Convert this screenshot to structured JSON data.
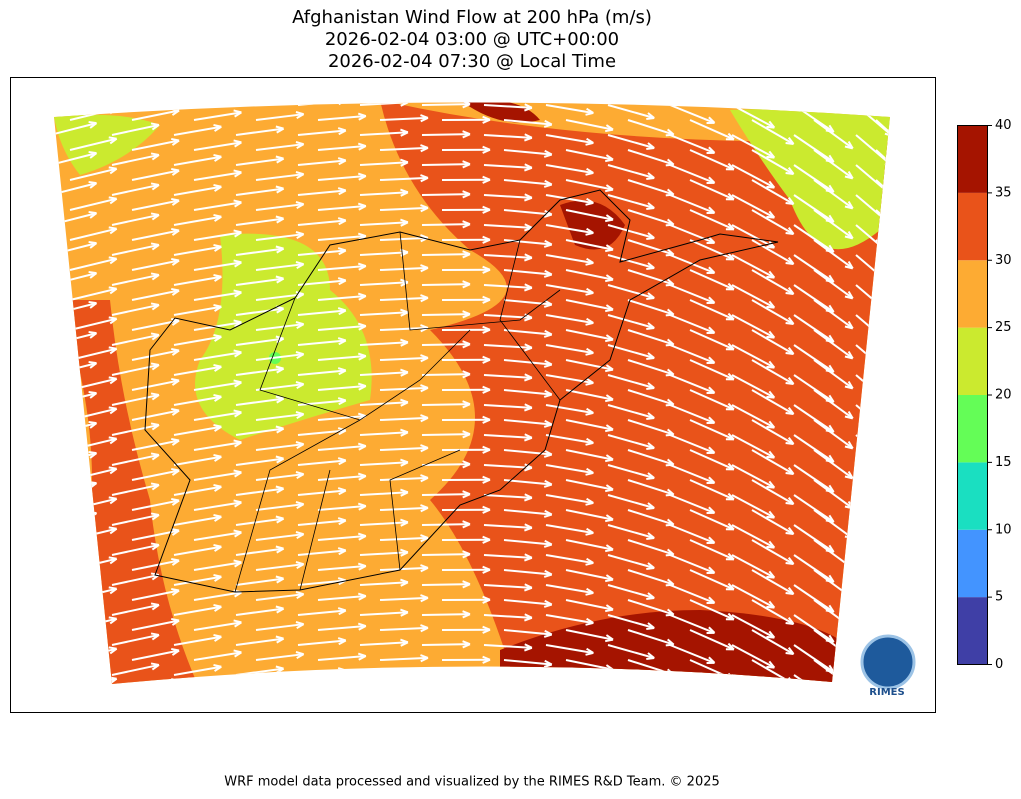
{
  "header": {
    "title_lines": [
      "Afghanistan Wind Flow at 200 hPa (m/s)",
      "2026-02-04 03:00 @ UTC+00:00",
      "2026-02-04 07:30 @ Local Time"
    ]
  },
  "colorbar": {
    "ticks": [
      0,
      5,
      10,
      15,
      20,
      25,
      30,
      35,
      40
    ],
    "colors": [
      "#3f3fa6",
      "#4394ff",
      "#1adfc1",
      "#64fd57",
      "#cbea2f",
      "#fdab33",
      "#e9531a",
      "#a51400"
    ]
  },
  "logo": {
    "text": "RIMES"
  },
  "footer": "WRF model data processed and visualized by the RIMES R&D Team. © 2025"
}
